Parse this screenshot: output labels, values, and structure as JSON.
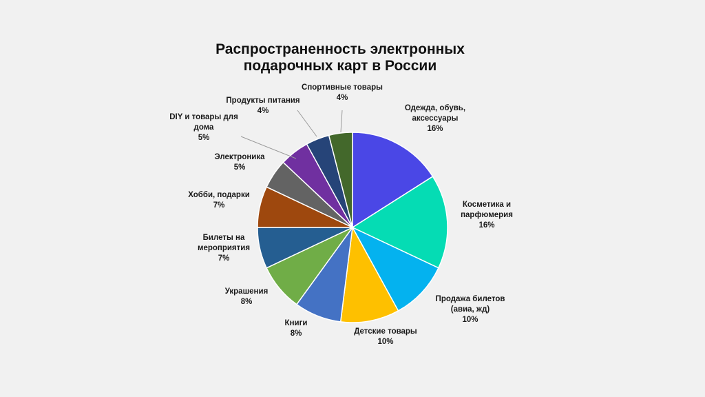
{
  "chart_data": {
    "type": "pie",
    "title_lines": [
      "Распространенность электронных",
      "подарочных карт в России"
    ],
    "slices": [
      {
        "label_lines": [
          "Одежда, обувь,",
          "аксессуары"
        ],
        "value": 16,
        "value_label": "16%",
        "color": "#4a47e6"
      },
      {
        "label_lines": [
          "Косметика и",
          "парфюмерия"
        ],
        "value": 16,
        "value_label": "16%",
        "color": "#05dcb4"
      },
      {
        "label_lines": [
          "Продажа билетов",
          "(авиа, жд)"
        ],
        "value": 10,
        "value_label": "10%",
        "color": "#04b2ef"
      },
      {
        "label_lines": [
          "Детские товары"
        ],
        "value": 10,
        "value_label": "10%",
        "color": "#fec000"
      },
      {
        "label_lines": [
          "Книги"
        ],
        "value": 8,
        "value_label": "8%",
        "color": "#4472c4"
      },
      {
        "label_lines": [
          "Украшения"
        ],
        "value": 8,
        "value_label": "8%",
        "color": "#70ad47"
      },
      {
        "label_lines": [
          "Билеты на",
          "мероприятия"
        ],
        "value": 7,
        "value_label": "7%",
        "color": "#255e91"
      },
      {
        "label_lines": [
          "Хобби, подарки"
        ],
        "value": 7,
        "value_label": "7%",
        "color": "#9e480e"
      },
      {
        "label_lines": [
          "Электроника"
        ],
        "value": 5,
        "value_label": "5%",
        "color": "#636363"
      },
      {
        "label_lines": [
          "DIY и товары для",
          "дома"
        ],
        "value": 5,
        "value_label": "5%",
        "color": "#7030a0"
      },
      {
        "label_lines": [
          "Продукты питания"
        ],
        "value": 4,
        "value_label": "4%",
        "color": "#264478"
      },
      {
        "label_lines": [
          "Спортивные товары"
        ],
        "value": 4,
        "value_label": "4%",
        "color": "#43682b"
      }
    ]
  }
}
